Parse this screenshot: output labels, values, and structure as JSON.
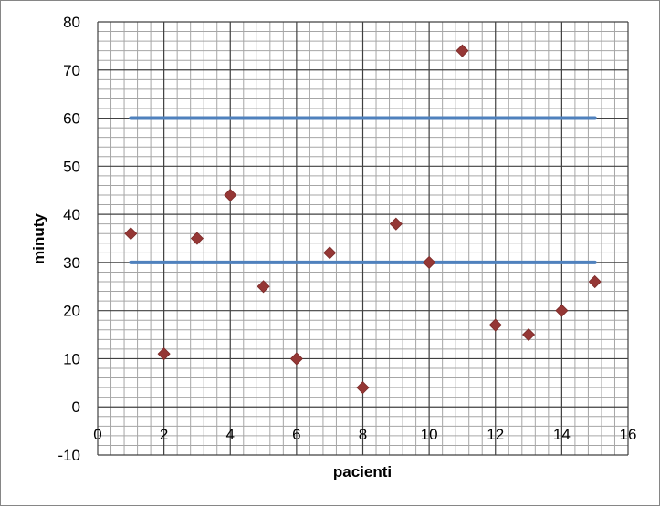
{
  "chart_data": {
    "type": "scatter",
    "title": "",
    "xlabel": "pacienti",
    "ylabel": "minuty",
    "xlim": [
      0,
      16
    ],
    "ylim": [
      -10,
      80
    ],
    "x_major_ticks": [
      0,
      2,
      4,
      6,
      8,
      10,
      12,
      14,
      16
    ],
    "y_major_ticks": [
      -10,
      0,
      10,
      20,
      30,
      40,
      50,
      60,
      70,
      80
    ],
    "x_minor_step": 0.4,
    "y_minor_step": 2,
    "grid": true,
    "legend": "none",
    "colors": {
      "points": "#953735",
      "lines": "#4f81bd",
      "major_grid": "#404040",
      "minor_grid": "#a6a6a6"
    },
    "series": [
      {
        "kind": "scatter",
        "marker": "diamond",
        "x": [
          1,
          2,
          3,
          4,
          5,
          6,
          7,
          8,
          9,
          10,
          11,
          12,
          13,
          14,
          15
        ],
        "y": [
          36,
          11,
          35,
          44,
          25,
          10,
          32,
          4,
          38,
          30,
          74,
          17,
          15,
          20,
          26
        ]
      },
      {
        "kind": "line",
        "x": [
          1,
          15
        ],
        "y": [
          60,
          60
        ]
      },
      {
        "kind": "line",
        "x": [
          1,
          15
        ],
        "y": [
          30,
          30
        ]
      }
    ]
  }
}
